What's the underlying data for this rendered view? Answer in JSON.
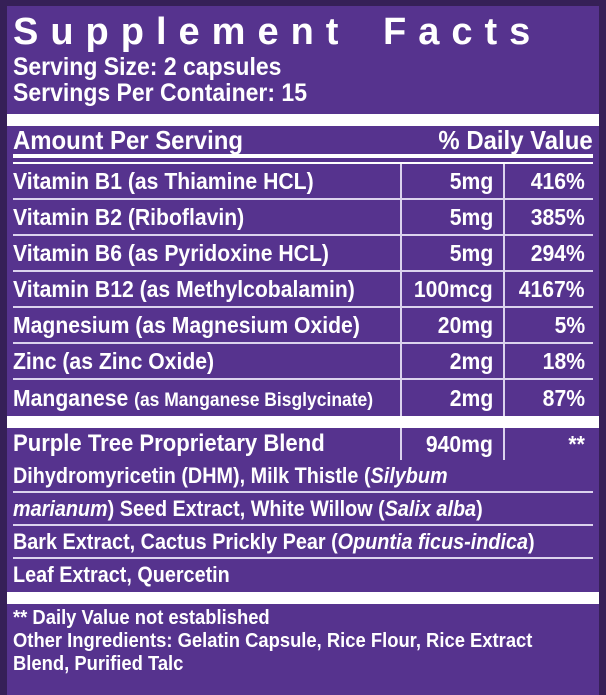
{
  "label": {
    "title": "Supplement Facts",
    "serving_size": "Serving Size: 2 capsules",
    "servings_per_container": "Servings Per Container: 15",
    "colors": {
      "background_purple": "#56338E",
      "border_purple": "#362057",
      "rule_lavender": "#DCD3EE",
      "text_white": "#FFFFFF"
    },
    "table": {
      "header": {
        "amount_col": "Amount Per Serving",
        "daily_value_col": "% Daily Value"
      },
      "rows": [
        {
          "name": "Vitamin B1 (as Thiamine HCL)",
          "amount": "5mg",
          "dv": "416%"
        },
        {
          "name": "Vitamin B2 (Riboflavin)",
          "amount": "5mg",
          "dv": "385%"
        },
        {
          "name": "Vitamin B6 (as Pyridoxine HCL)",
          "amount": "5mg",
          "dv": "294%"
        },
        {
          "name": "Vitamin B12 (as Methylcobalamin)",
          "amount": "100mcg",
          "dv": "4167%"
        },
        {
          "name": "Magnesium (as Magnesium Oxide)",
          "amount": "20mg",
          "dv": "5%"
        },
        {
          "name": "Zinc (as Zinc Oxide)",
          "amount": "2mg",
          "dv": "18%"
        },
        {
          "name": "Manganese",
          "name_note": "(as Manganese Bisglycinate)",
          "amount": "2mg",
          "dv": "87%"
        }
      ],
      "blend": {
        "name": "Purple Tree Proprietary Blend",
        "amount": "940mg",
        "dv": "**"
      },
      "blend_lines": [
        [
          {
            "t": "Dihydromyricetin (DHM), Milk Thistle ("
          },
          {
            "t": "Silybum",
            "i": true
          }
        ],
        [
          {
            "t": "marianum",
            "i": true
          },
          {
            "t": ") Seed Extract, White Willow ("
          },
          {
            "t": "Salix alba",
            "i": true
          },
          {
            "t": ")"
          }
        ],
        [
          {
            "t": "Bark Extract, Cactus Prickly Pear ("
          },
          {
            "t": "Opuntia ficus-indica",
            "i": true
          },
          {
            "t": ")"
          }
        ],
        [
          {
            "t": "Leaf Extract, Quercetin"
          }
        ]
      ]
    },
    "footnotes": {
      "dv_note": "** Daily Value not established",
      "other_ingredients": "Other Ingredients: Gelatin Capsule, Rice Flour, Rice Extract",
      "other_ingredients_cont": "Blend, Purified Talc"
    }
  }
}
